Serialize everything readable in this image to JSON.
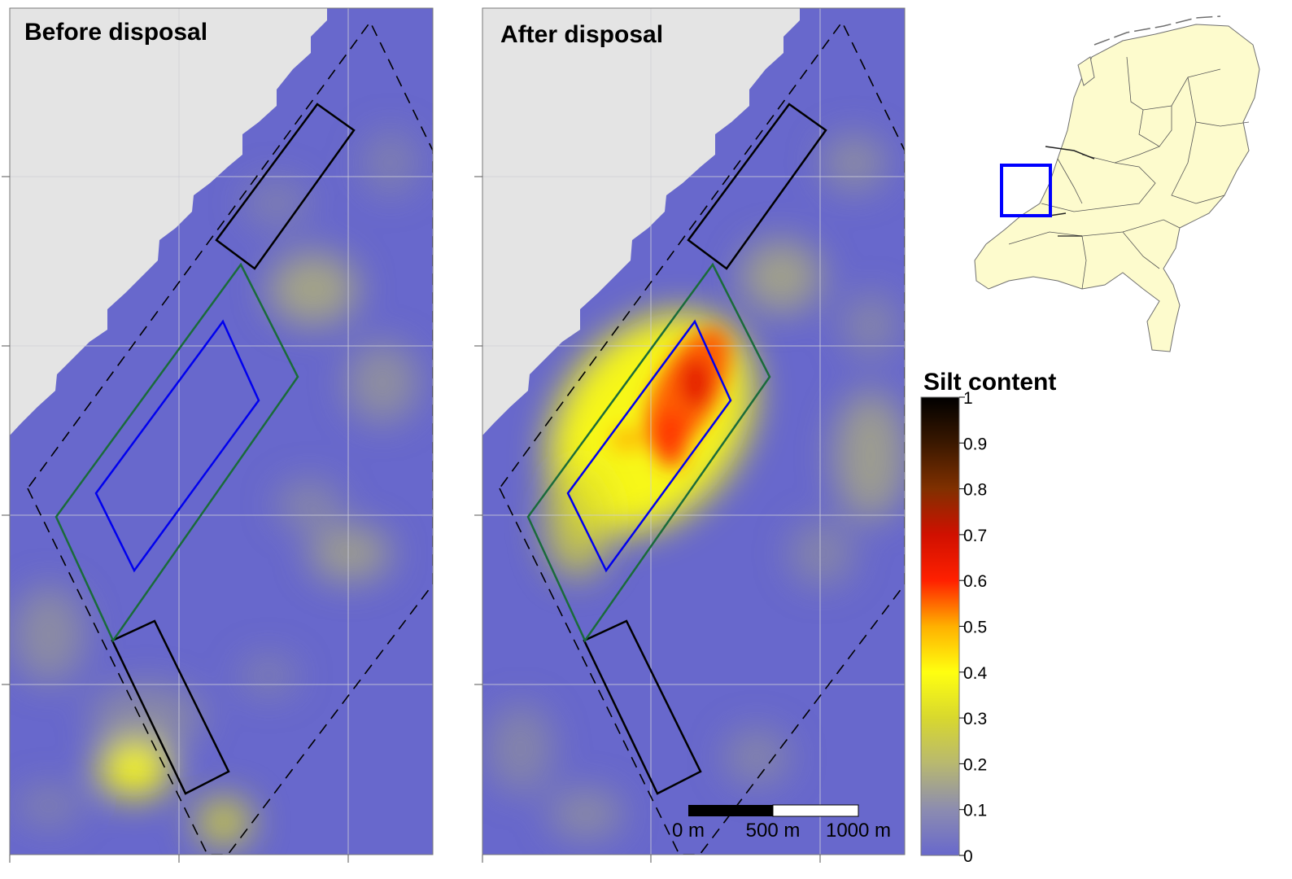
{
  "panels": {
    "before": {
      "title": "Before disposal"
    },
    "after": {
      "title": "After disposal"
    }
  },
  "colorbar": {
    "title": "Silt content",
    "ticks": [
      "0",
      "0.1",
      "0.2",
      "0.3",
      "0.4",
      "0.5",
      "0.6",
      "0.7",
      "0.8",
      "0.9",
      "1"
    ],
    "stops": [
      {
        "value": 0.0,
        "color": "#6868cc"
      },
      {
        "value": 0.1,
        "color": "#8c8cb0"
      },
      {
        "value": 0.2,
        "color": "#b8b870"
      },
      {
        "value": 0.3,
        "color": "#d8d82e"
      },
      {
        "value": 0.4,
        "color": "#ffff10"
      },
      {
        "value": 0.5,
        "color": "#ffb000"
      },
      {
        "value": 0.6,
        "color": "#ff2000"
      },
      {
        "value": 0.7,
        "color": "#d01000"
      },
      {
        "value": 0.8,
        "color": "#803000"
      },
      {
        "value": 0.9,
        "color": "#3a1800"
      },
      {
        "value": 1.0,
        "color": "#000000"
      }
    ]
  },
  "scale_bar": {
    "labels": [
      "0 m",
      "500 m",
      "1000 m"
    ]
  },
  "colors": {
    "water_base": "#6868cc",
    "land": "#e4e4e4",
    "target_zone": "#0000ee",
    "disposal_zone": "#1a6b3a",
    "reference_zone": "#000000",
    "map_fill": "#fdfbcd",
    "inset_marker": "#0000ff"
  }
}
